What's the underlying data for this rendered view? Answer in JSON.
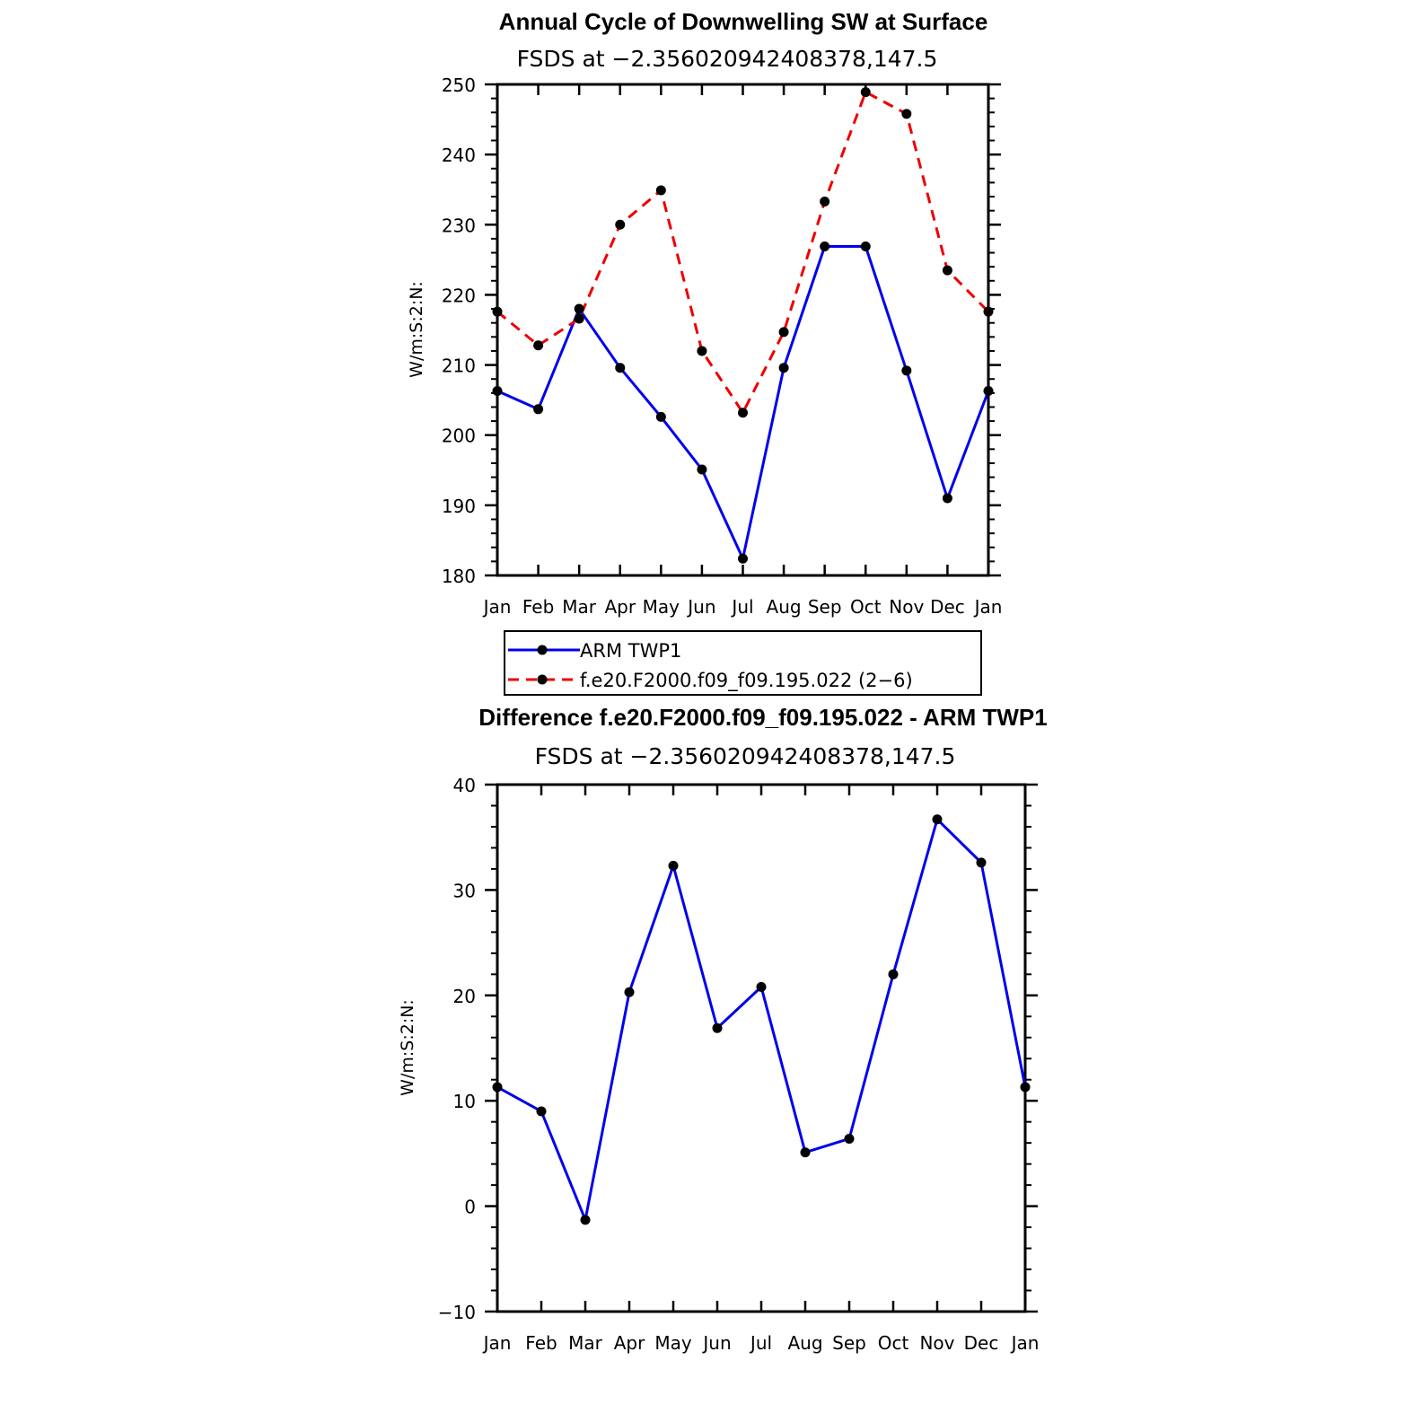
{
  "colors": {
    "arm": "#0000ee",
    "model": "#ee0000",
    "marker": "#000000",
    "axis": "#000000"
  },
  "chart_data": [
    {
      "type": "line",
      "title": "Annual Cycle of Downwelling SW at Surface",
      "subtitle": "FSDS at −2.356020942408378,147.5",
      "xlabel": "",
      "ylabel": "W/m:S:2:N:",
      "categories": [
        "Jan",
        "Feb",
        "Mar",
        "Apr",
        "May",
        "Jun",
        "Jul",
        "Aug",
        "Sep",
        "Oct",
        "Nov",
        "Dec",
        "Jan"
      ],
      "ylim": [
        180,
        250
      ],
      "yticks": [
        180,
        190,
        200,
        210,
        220,
        230,
        240,
        250
      ],
      "grid": false,
      "legend_position": "bottom",
      "series": [
        {
          "name": "ARM TWP1",
          "color": "#0000ee",
          "dash": "solid",
          "values": [
            206.3,
            203.7,
            218.0,
            209.6,
            202.6,
            195.1,
            182.4,
            209.6,
            226.9,
            226.9,
            209.2,
            191.0,
            206.3
          ]
        },
        {
          "name": "f.e20.F2000.f09_f09.195.022 (2−6)",
          "color": "#ee0000",
          "dash": "dashed",
          "values": [
            217.6,
            212.8,
            216.6,
            230.0,
            234.9,
            212.0,
            203.2,
            214.7,
            233.3,
            248.9,
            245.8,
            223.5,
            217.6
          ]
        }
      ]
    },
    {
      "type": "line",
      "title": "Difference f.e20.F2000.f09_f09.195.022 - ARM TWP1",
      "subtitle": "FSDS at −2.356020942408378,147.5",
      "xlabel": "",
      "ylabel": "W/m:S:2:N:",
      "categories": [
        "Jan",
        "Feb",
        "Mar",
        "Apr",
        "May",
        "Jun",
        "Jul",
        "Aug",
        "Sep",
        "Oct",
        "Nov",
        "Dec",
        "Jan"
      ],
      "ylim": [
        -10,
        40
      ],
      "yticks": [
        -10,
        0,
        10,
        20,
        30,
        40
      ],
      "ytick_labels": [
        "−10",
        "0",
        "10",
        "20",
        "30",
        "40"
      ],
      "grid": false,
      "series": [
        {
          "color": "#0000ee",
          "dash": "solid",
          "values": [
            11.3,
            9.0,
            -1.3,
            20.3,
            32.3,
            16.9,
            20.8,
            5.1,
            6.4,
            22.0,
            36.7,
            32.6,
            11.3
          ]
        }
      ]
    }
  ]
}
